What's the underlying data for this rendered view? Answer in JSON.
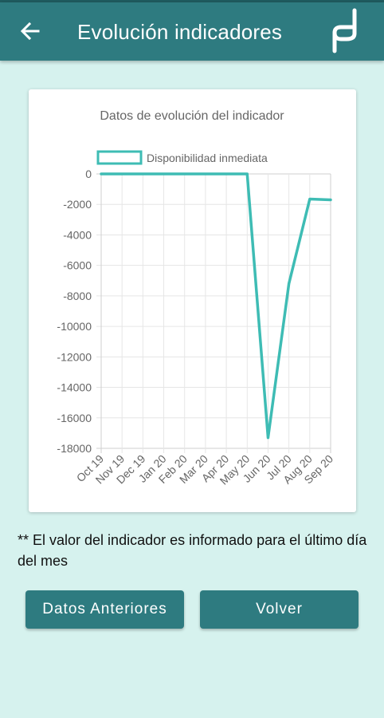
{
  "app_bar": {
    "title": "Evolución indicadores",
    "back_icon": "arrow-left-icon",
    "logo_icon": "brand-logo-icon"
  },
  "colors": {
    "primary": "#2e7b80",
    "background": "#d6f2ee",
    "series_line": "#3ebcb4"
  },
  "chart_data": {
    "type": "line",
    "title": "Datos de evolución del indicador",
    "legend_position": "top",
    "grid": true,
    "categories": [
      "Oct 19",
      "Nov 19",
      "Dec 19",
      "Jan 20",
      "Feb 20",
      "Mar 20",
      "Apr 20",
      "May 20",
      "Jun 20",
      "Jul 20",
      "Aug 20",
      "Sep 20"
    ],
    "series": [
      {
        "name": "Disponibilidad inmediata",
        "values": [
          0,
          0,
          0,
          0,
          0,
          0,
          0,
          0,
          -17300,
          -7200,
          -1650,
          -1700
        ]
      }
    ],
    "ylim": [
      -18000,
      0
    ],
    "yticks": [
      0,
      -2000,
      -4000,
      -6000,
      -8000,
      -10000,
      -12000,
      -14000,
      -16000,
      -18000
    ],
    "xlabel": "",
    "ylabel": ""
  },
  "note": {
    "text": "** El valor del indicador es informado para el último día del mes"
  },
  "buttons": {
    "previous_label": "Datos Anteriores",
    "back_label": "Volver"
  }
}
